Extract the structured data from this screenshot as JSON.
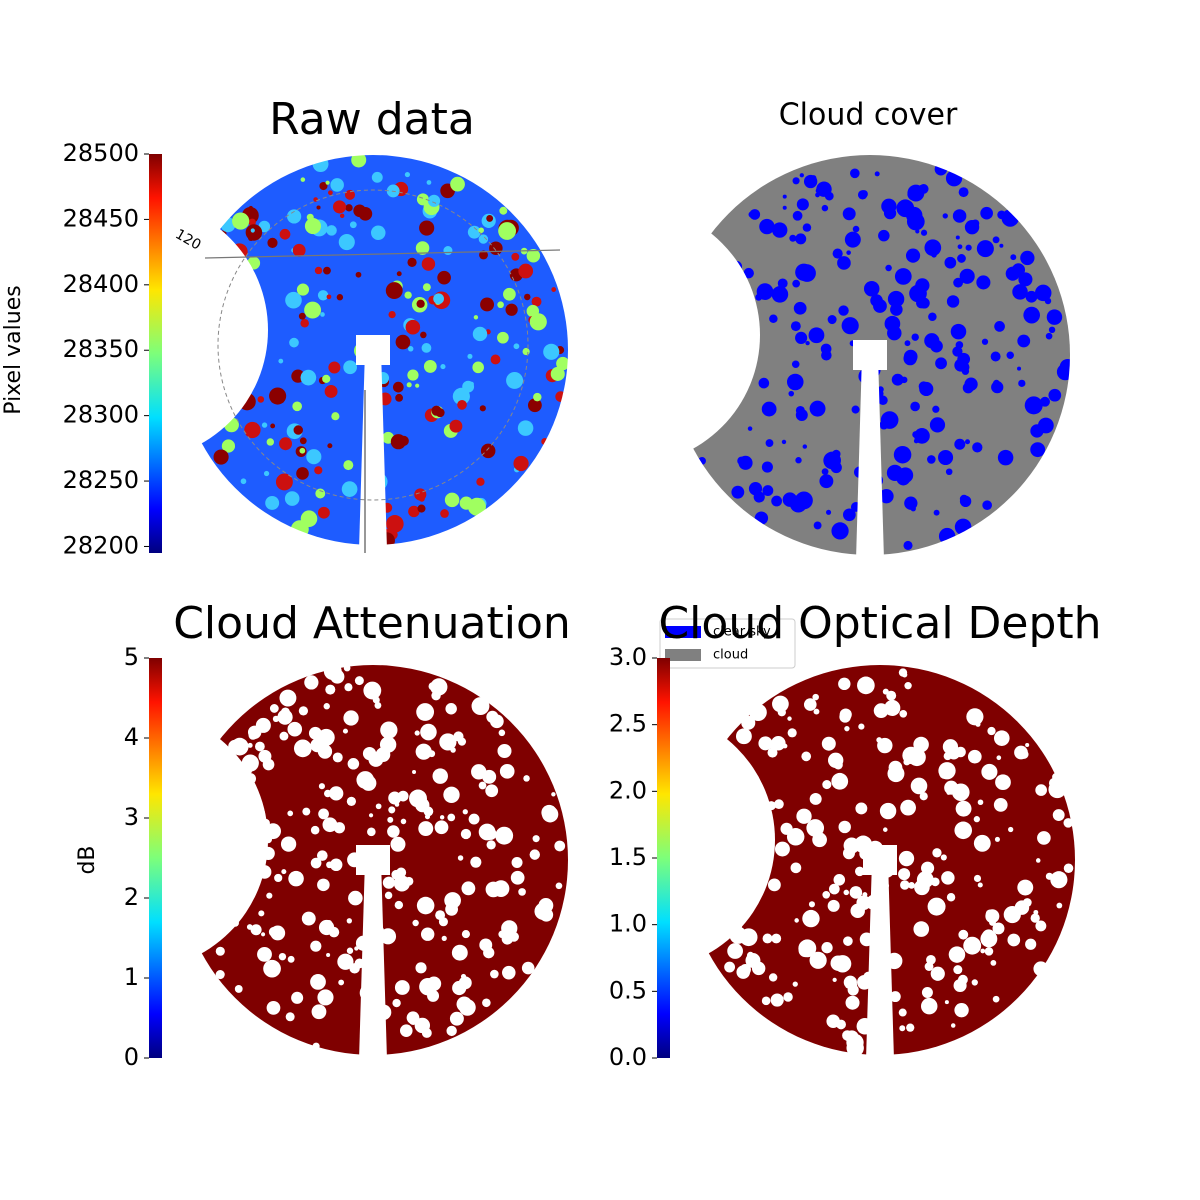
{
  "chart_data": [
    {
      "type": "image",
      "title": "Raw data",
      "colormap": "jet",
      "colorbar_label": "Pixel values",
      "clim": [
        28195,
        28500
      ],
      "cticks": [
        28200,
        28250,
        28300,
        28350,
        28400,
        28450,
        28500
      ],
      "annotations": [
        "120"
      ]
    },
    {
      "type": "image",
      "title": "Cloud cover",
      "legend": [
        {
          "name": "clear sky",
          "color": "#0000ff"
        },
        {
          "name": "cloud",
          "color": "#808080"
        }
      ]
    },
    {
      "type": "image",
      "title": "Cloud Attenuation",
      "colormap": "jet",
      "colorbar_label": "dB",
      "clim": [
        0,
        5
      ],
      "cticks": [
        0,
        1,
        2,
        3,
        4,
        5
      ]
    },
    {
      "type": "image",
      "title": "Cloud Optical Depth",
      "colormap": "jet",
      "clim": [
        0,
        3
      ],
      "cticks": [
        {
          "value": 0,
          "label": "0.0"
        },
        {
          "value": 0.5,
          "label": "0.5"
        },
        {
          "value": 1,
          "label": "1.0"
        },
        {
          "value": 1.5,
          "label": "1.5"
        },
        {
          "value": 2,
          "label": "2.0"
        },
        {
          "value": 2.5,
          "label": "2.5"
        },
        {
          "value": 3,
          "label": "3.0"
        }
      ]
    }
  ]
}
